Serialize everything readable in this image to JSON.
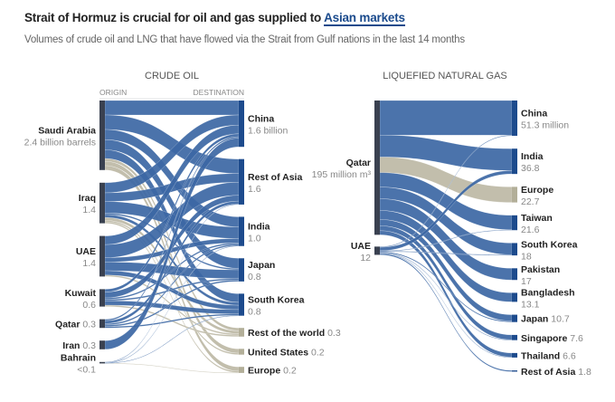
{
  "header": {
    "title_prefix": "Strait of Hormuz is crucial for oil and gas supplied to ",
    "title_highlight": "Asian markets",
    "subtitle": "Volumes of crude oil and LNG that have flowed via the Strait from Gulf nations in the last 14 months"
  },
  "colors": {
    "asia_flow": "#3c67a4",
    "other_flow": "#bdb9a5",
    "origin_node": "#3a4150",
    "asia_node": "#1d4b8d",
    "other_node": "#b3af99"
  },
  "chart_data": [
    {
      "type": "sankey",
      "title": "CRUDE OIL",
      "origin_label": "ORIGIN",
      "destination_label": "DESTINATION",
      "unit": "billion barrels",
      "sources": [
        {
          "name": "Saudi Arabia",
          "label": "2.4 billion barrels",
          "value": 2.4
        },
        {
          "name": "Iraq",
          "label": "1.4",
          "value": 1.4
        },
        {
          "name": "UAE",
          "label": "1.4",
          "value": 1.4
        },
        {
          "name": "Kuwait",
          "label": "0.6",
          "value": 0.6
        },
        {
          "name": "Qatar",
          "label": "0.3",
          "value": 0.3,
          "inline": true
        },
        {
          "name": "Iran",
          "label": "0.3",
          "value": 0.3,
          "inline": true
        },
        {
          "name": "Bahrain",
          "label": "<0.1",
          "value": 0.05
        }
      ],
      "targets": [
        {
          "name": "China",
          "label": "1.6 billion",
          "value": 1.6,
          "asia": true
        },
        {
          "name": "Rest of Asia",
          "label": "1.6",
          "value": 1.6,
          "asia": true
        },
        {
          "name": "India",
          "label": "1.0",
          "value": 1.0,
          "asia": true
        },
        {
          "name": "Japan",
          "label": "0.8",
          "value": 0.8,
          "asia": true
        },
        {
          "name": "South Korea",
          "label": "0.8",
          "value": 0.8,
          "asia": true
        },
        {
          "name": "Rest of the world",
          "label": "0.3",
          "value": 0.3,
          "asia": false,
          "inline": true
        },
        {
          "name": "United States",
          "label": "0.2",
          "value": 0.2,
          "asia": false,
          "inline": true
        },
        {
          "name": "Europe",
          "label": "0.2",
          "value": 0.2,
          "asia": false,
          "inline": true
        }
      ],
      "links_estimated": [
        [
          0,
          0,
          0.5
        ],
        [
          0,
          1,
          0.5
        ],
        [
          0,
          2,
          0.35
        ],
        [
          0,
          3,
          0.35
        ],
        [
          0,
          4,
          0.3
        ],
        [
          0,
          5,
          0.1
        ],
        [
          0,
          6,
          0.15
        ],
        [
          0,
          7,
          0.15
        ],
        [
          1,
          0,
          0.35
        ],
        [
          1,
          1,
          0.3
        ],
        [
          1,
          2,
          0.4
        ],
        [
          1,
          3,
          0.05
        ],
        [
          1,
          4,
          0.1
        ],
        [
          1,
          5,
          0.1
        ],
        [
          1,
          6,
          0.05
        ],
        [
          1,
          7,
          0.05
        ],
        [
          2,
          0,
          0.3
        ],
        [
          2,
          1,
          0.45
        ],
        [
          2,
          2,
          0.15
        ],
        [
          2,
          3,
          0.3
        ],
        [
          2,
          4,
          0.15
        ],
        [
          2,
          5,
          0.05
        ],
        [
          3,
          0,
          0.1
        ],
        [
          3,
          1,
          0.2
        ],
        [
          3,
          2,
          0.05
        ],
        [
          3,
          3,
          0.05
        ],
        [
          3,
          4,
          0.15
        ],
        [
          3,
          5,
          0.05
        ],
        [
          4,
          0,
          0.05
        ],
        [
          4,
          1,
          0.1
        ],
        [
          4,
          2,
          0.05
        ],
        [
          4,
          3,
          0.05
        ],
        [
          4,
          4,
          0.05
        ],
        [
          5,
          0,
          0.3
        ],
        [
          6,
          1,
          0.02
        ],
        [
          6,
          2,
          0.01
        ],
        [
          6,
          4,
          0.01
        ],
        [
          6,
          7,
          0.01
        ]
      ]
    },
    {
      "type": "sankey",
      "title": "LIQUEFIED NATURAL GAS",
      "unit": "million m³",
      "sources": [
        {
          "name": "Qatar",
          "label": "195 million m³",
          "value": 195
        },
        {
          "name": "UAE",
          "label": "12",
          "value": 12
        }
      ],
      "targets": [
        {
          "name": "China",
          "label": "51.3 million",
          "value": 51.3,
          "asia": true
        },
        {
          "name": "India",
          "label": "36.8",
          "value": 36.8,
          "asia": true
        },
        {
          "name": "Europe",
          "label": "22.7",
          "value": 22.7,
          "asia": false
        },
        {
          "name": "Taiwan",
          "label": "21.6",
          "value": 21.6,
          "asia": true
        },
        {
          "name": "South Korea",
          "label": "18",
          "value": 18,
          "asia": true
        },
        {
          "name": "Pakistan",
          "label": "17",
          "value": 17,
          "asia": true
        },
        {
          "name": "Bangladesh",
          "label": "13.1",
          "value": 13.1,
          "asia": true
        },
        {
          "name": "Japan",
          "label": "10.7",
          "value": 10.7,
          "asia": true,
          "inline": true
        },
        {
          "name": "Singapore",
          "label": "7.6",
          "value": 7.6,
          "asia": true,
          "inline": true
        },
        {
          "name": "Thailand",
          "label": "6.6",
          "value": 6.6,
          "asia": true,
          "inline": true
        },
        {
          "name": "Rest of Asia",
          "label": "1.8",
          "value": 1.8,
          "asia": true,
          "inline": true
        }
      ],
      "links_estimated": [
        [
          0,
          0,
          50.3
        ],
        [
          0,
          1,
          31.8
        ],
        [
          0,
          2,
          22.7
        ],
        [
          0,
          3,
          21.0
        ],
        [
          0,
          4,
          17.0
        ],
        [
          0,
          5,
          17.0
        ],
        [
          0,
          6,
          13.1
        ],
        [
          0,
          7,
          9.2
        ],
        [
          0,
          8,
          7.1
        ],
        [
          0,
          9,
          6.0
        ],
        [
          1,
          0,
          1.0
        ],
        [
          1,
          1,
          5.0
        ],
        [
          1,
          3,
          0.6
        ],
        [
          1,
          4,
          1.0
        ],
        [
          1,
          7,
          1.5
        ],
        [
          1,
          8,
          0.5
        ],
        [
          1,
          9,
          0.6
        ],
        [
          1,
          10,
          1.8
        ]
      ]
    }
  ]
}
